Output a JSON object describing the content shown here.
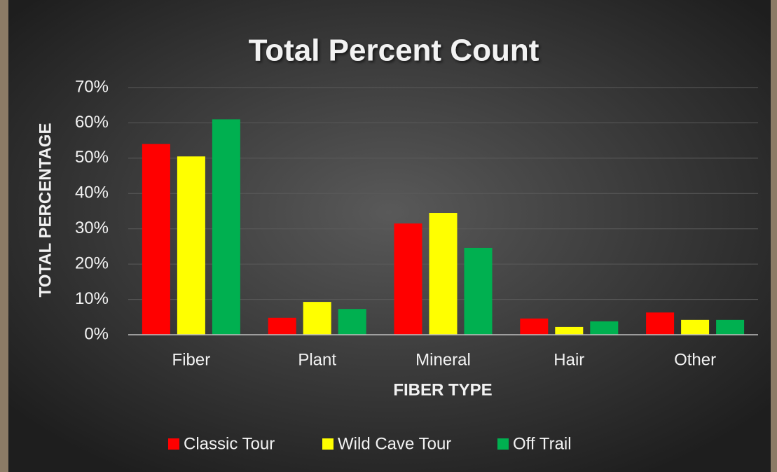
{
  "chart_data": {
    "type": "bar",
    "title": "Total Percent Count",
    "x_label": "FIBER TYPE",
    "y_label": "TOTAL PERCENTAGE",
    "categories": [
      "Fiber",
      "Plant",
      "Mineral",
      "Hair",
      "Other"
    ],
    "series": [
      {
        "name": "Classic Tour",
        "color": "#ff0000",
        "values": [
          54,
          4.8,
          31.5,
          4.6,
          6.3
        ]
      },
      {
        "name": "Wild Cave Tour",
        "color": "#ffff00",
        "values": [
          50.5,
          9.3,
          34.5,
          2.2,
          4.2
        ]
      },
      {
        "name": "Off Trail",
        "color": "#00b050",
        "values": [
          61,
          7.3,
          24.6,
          3.8,
          4.2
        ]
      }
    ],
    "ylim": [
      0,
      70
    ],
    "yticks": [
      {
        "value": 0,
        "label": "0%"
      },
      {
        "value": 10,
        "label": "10%"
      },
      {
        "value": 20,
        "label": "20%"
      },
      {
        "value": 30,
        "label": "30%"
      },
      {
        "value": 40,
        "label": "40%"
      },
      {
        "value": 50,
        "label": "50%"
      },
      {
        "value": 60,
        "label": "60%"
      },
      {
        "value": 70,
        "label": "70%"
      }
    ],
    "grid": true,
    "legend": "bottom"
  }
}
